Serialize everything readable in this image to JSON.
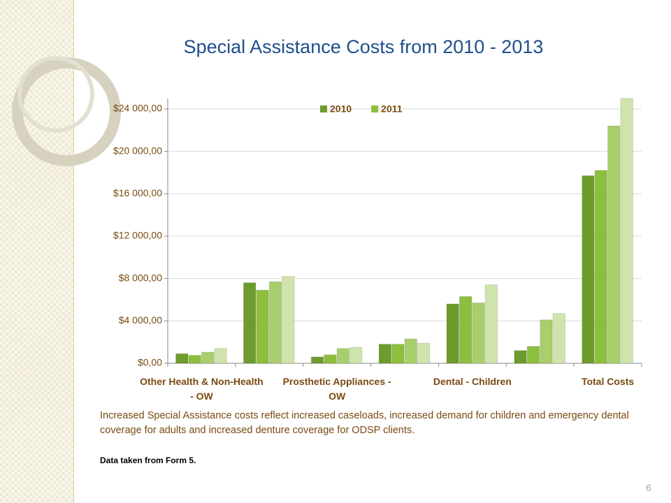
{
  "slide": {
    "title": "Special Assistance Costs from 2010 - 2013",
    "body": "Increased Special Assistance costs reflect  increased caseloads, increased demand for children and emergency dental coverage for adults and increased denture coverage for ODSP clients.",
    "note": "Data taken from Form 5.",
    "page_number": "6"
  },
  "chart_data": {
    "type": "bar",
    "categories": [
      "Other Health & Non-Health - OW",
      null,
      "Prosthetic Appliances - OW",
      null,
      "Dental - Children",
      null,
      "Total Costs"
    ],
    "series": [
      {
        "name": "2010",
        "color": "#6e9c2c",
        "values": [
          900,
          7600,
          600,
          1800,
          5600,
          1200,
          17700
        ]
      },
      {
        "name": "2011",
        "color": "#8dbf3e",
        "values": [
          750,
          6900,
          800,
          1800,
          6300,
          1600,
          18200
        ]
      },
      {
        "color": "#a9cf6c",
        "values": [
          1050,
          7700,
          1400,
          2300,
          5700,
          4100,
          22400
        ]
      },
      {
        "color": "#cfe4ad",
        "values": [
          1400,
          8200,
          1500,
          1900,
          7400,
          4700,
          25000
        ]
      }
    ],
    "ylim": [
      0,
      25000
    ],
    "yticks": [
      {
        "value": 0,
        "label": "$0,00"
      },
      {
        "value": 4000,
        "label": "$4 000,00"
      },
      {
        "value": 8000,
        "label": "$8 000,00"
      },
      {
        "value": 12000,
        "label": "$12 000,00"
      },
      {
        "value": 16000,
        "label": "$16 000,00"
      },
      {
        "value": 20000,
        "label": "$20 000,00"
      },
      {
        "value": 24000,
        "label": "$24 000,00"
      }
    ],
    "grid": true,
    "legend": "top"
  }
}
